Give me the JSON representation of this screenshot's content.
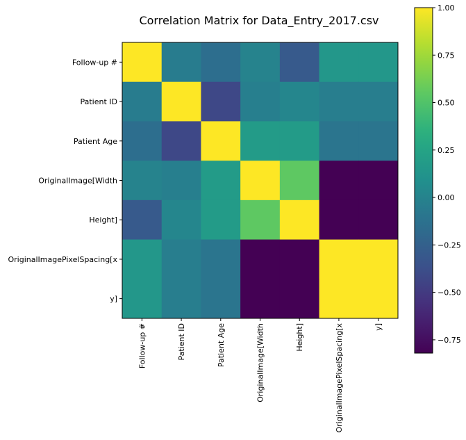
{
  "chart_data": {
    "type": "heatmap",
    "title": "Correlation Matrix for Data_Entry_2017.csv",
    "row_labels": [
      "Follow-up #",
      "Patient ID",
      "Patient Age",
      "OriginalImage[Width",
      "Height]",
      "OriginalImagePixelSpacing[x",
      "y]"
    ],
    "col_labels": [
      "Follow-up #",
      "Patient ID",
      "Patient Age",
      "OriginalImage[Width",
      "Height]",
      "OriginalImagePixelSpacing[x",
      "y]"
    ],
    "values": [
      [
        1.0,
        -0.05,
        -0.15,
        0.0,
        -0.3,
        0.15,
        0.15
      ],
      [
        -0.05,
        1.0,
        -0.42,
        -0.03,
        0.02,
        -0.04,
        -0.04
      ],
      [
        -0.15,
        -0.42,
        1.0,
        0.18,
        0.18,
        -0.1,
        -0.1
      ],
      [
        0.0,
        -0.03,
        0.18,
        1.0,
        0.55,
        -0.82,
        -0.82
      ],
      [
        -0.3,
        0.02,
        0.18,
        0.55,
        1.0,
        -0.82,
        -0.82
      ],
      [
        0.15,
        -0.04,
        -0.1,
        -0.82,
        -0.82,
        1.0,
        1.0
      ],
      [
        0.15,
        -0.04,
        -0.1,
        -0.82,
        -0.82,
        1.0,
        1.0
      ]
    ],
    "colormap": "viridis",
    "vmin": -0.82,
    "vmax": 1.0,
    "colorbar_ticks": [
      1.0,
      0.75,
      0.5,
      0.25,
      0.0,
      -0.25,
      -0.5,
      -0.75
    ],
    "colorbar_tick_labels": [
      "1.00",
      "0.75",
      "0.50",
      "0.25",
      "0.00",
      "−0.25",
      "−0.50",
      "−0.75"
    ]
  }
}
